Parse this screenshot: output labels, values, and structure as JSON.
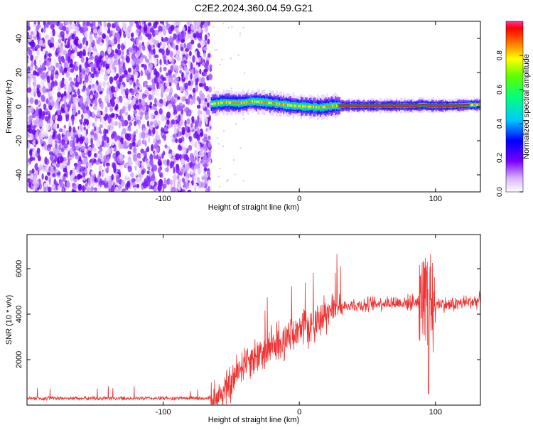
{
  "chart_data": [
    {
      "type": "heatmap",
      "title": "C2E2.2024.360.04.59.G21",
      "xlabel": "Height of straight line (km)",
      "ylabel": "Frequency (Hz)",
      "xlim": [
        -200,
        133
      ],
      "ylim": [
        -50,
        50
      ],
      "xticks": [
        -100,
        0,
        100
      ],
      "yticks": [
        -40,
        -20,
        0,
        20,
        40
      ],
      "noise_region_x": [
        -200,
        -65
      ],
      "signal_track": {
        "x": [
          -65,
          -55,
          -45,
          -35,
          -25,
          -15,
          -5,
          5,
          15,
          25,
          35,
          50,
          70,
          85,
          90,
          95,
          110,
          125,
          133
        ],
        "y": [
          1.5,
          2.5,
          2,
          3,
          2.5,
          1.5,
          0.5,
          0,
          -0.5,
          0.5,
          0.5,
          0.5,
          0.5,
          0.5,
          1,
          0.5,
          0.5,
          1,
          1
        ]
      },
      "colorbar": {
        "label": "Normalized spectral amplitude",
        "range": [
          0,
          1
        ],
        "ticks": [
          0.0,
          0.2,
          0.4,
          0.6,
          0.8
        ]
      }
    },
    {
      "type": "line",
      "xlabel": "Height of straight line (km)",
      "ylabel": "SNR (10 * v/v)",
      "xlim": [
        -200,
        133
      ],
      "ylim": [
        0,
        7500
      ],
      "xticks": [
        -100,
        0,
        100
      ],
      "yticks": [
        2000,
        4000,
        6000
      ],
      "color": "#ee3333",
      "series": [
        {
          "x": [
            -200,
            -150,
            -100,
            -70,
            -60,
            -50,
            -45,
            -40,
            -30,
            -20,
            -10,
            0,
            10,
            20,
            30,
            40,
            50,
            60,
            70,
            80,
            90,
            95,
            100,
            110,
            120,
            133
          ],
          "y": [
            300,
            300,
            300,
            300,
            350,
            900,
            1500,
            2000,
            2200,
            2600,
            2900,
            3200,
            3600,
            4000,
            4300,
            4400,
            4400,
            4500,
            4500,
            4500,
            4600,
            4700,
            4500,
            4400,
            4500,
            4600
          ]
        }
      ]
    }
  ]
}
